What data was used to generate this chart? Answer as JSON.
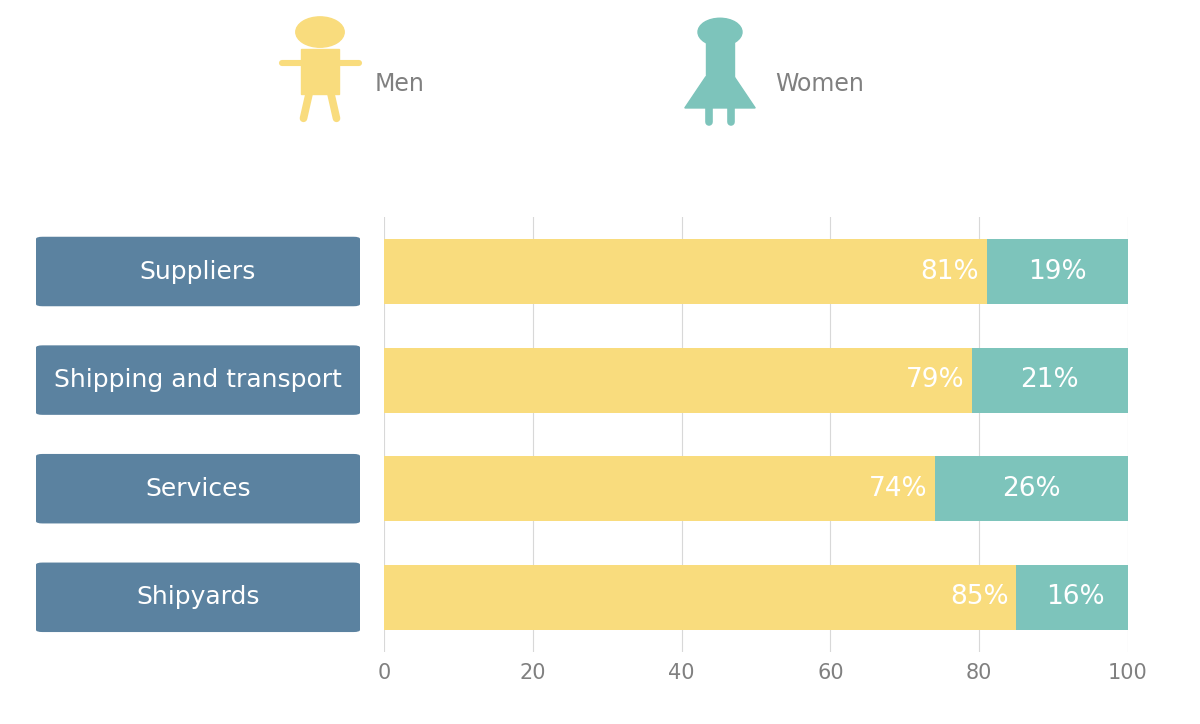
{
  "categories": [
    "Suppliers",
    "Shipping and transport",
    "Services",
    "Shipyards"
  ],
  "men_values": [
    81,
    79,
    74,
    85
  ],
  "women_values": [
    19,
    21,
    26,
    16
  ],
  "men_color": "#F9DC7D",
  "women_color": "#7DC4BB",
  "bar_label_color": "#ffffff",
  "men_label": "Men",
  "women_label": "Women",
  "xlim": [
    0,
    100
  ],
  "xticks": [
    0,
    20,
    40,
    60,
    80,
    100
  ],
  "background_color": "#ffffff",
  "grid_color": "#d8d8d8",
  "tick_fontsize": 15,
  "bar_text_fontsize": 19,
  "category_fontsize": 18,
  "legend_fontsize": 17,
  "bar_height": 0.6,
  "label_box_color": "#5B82A0",
  "label_text_color": "#ffffff"
}
